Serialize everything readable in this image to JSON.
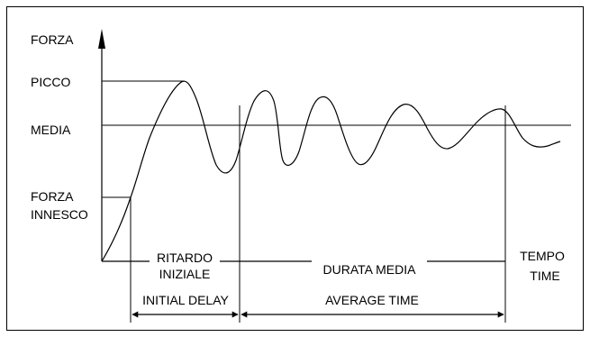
{
  "labels": {
    "y_axis": "FORZA",
    "peak": "PICCO",
    "mean": "MEDIA",
    "trigger_force_line1": "FORZA",
    "trigger_force_line2": "INNESCO",
    "initial_delay_it_line1": "RITARDO",
    "initial_delay_it_line2": "INIZIALE",
    "average_duration_it": "DURATA MEDIA",
    "time_it": "TEMPO",
    "time_en": "TIME",
    "initial_delay_en": "INITIAL DELAY",
    "average_time_en": "AVERAGE TIME"
  },
  "colors": {
    "ink": "#000000",
    "background": "#ffffff"
  }
}
